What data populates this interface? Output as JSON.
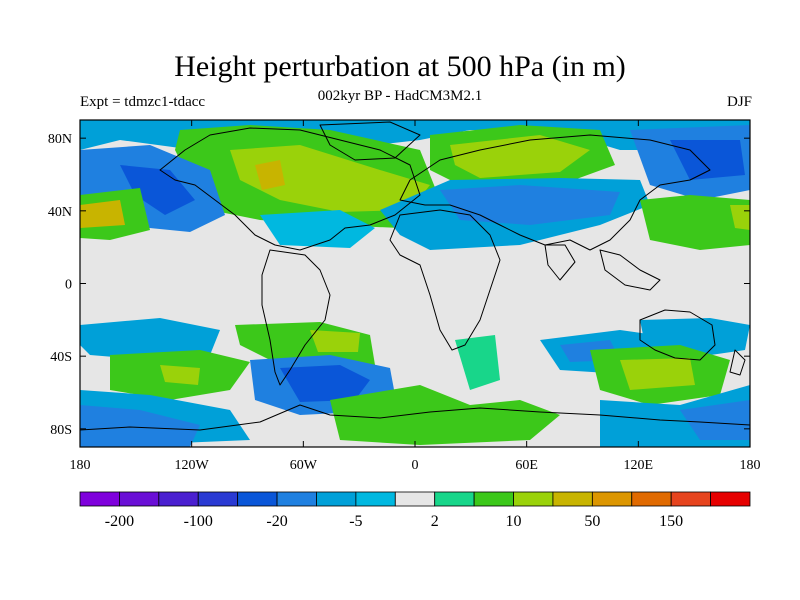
{
  "header": {
    "title": "Height perturbation at 500 hPa (in m)",
    "subtitle": "002kyr BP - HadCM3M2.1",
    "left_label": "Expt = tdmzc1-tdacc",
    "right_label": "DJF"
  },
  "map": {
    "lon_ticks": [
      "180",
      "120W",
      "60W",
      "0",
      "60E",
      "120E",
      "180"
    ],
    "lat_ticks": [
      "80N",
      "40N",
      "0",
      "40S",
      "80S"
    ],
    "background_color": "#e6e6e6"
  },
  "colorbar": {
    "colors": [
      "#7f00dc",
      "#6a0fd6",
      "#4a1fd0",
      "#2a3ad3",
      "#0a56d8",
      "#1f80e0",
      "#00a0d8",
      "#00b8e0",
      "#e6e6e6",
      "#18d68a",
      "#3cc81a",
      "#9ad20a",
      "#c8b400",
      "#dc9600",
      "#e06a00",
      "#e6441e",
      "#e60000"
    ],
    "labels": [
      "-200",
      "-100",
      "-20",
      "-5",
      "2",
      "10",
      "50",
      "150"
    ]
  }
}
